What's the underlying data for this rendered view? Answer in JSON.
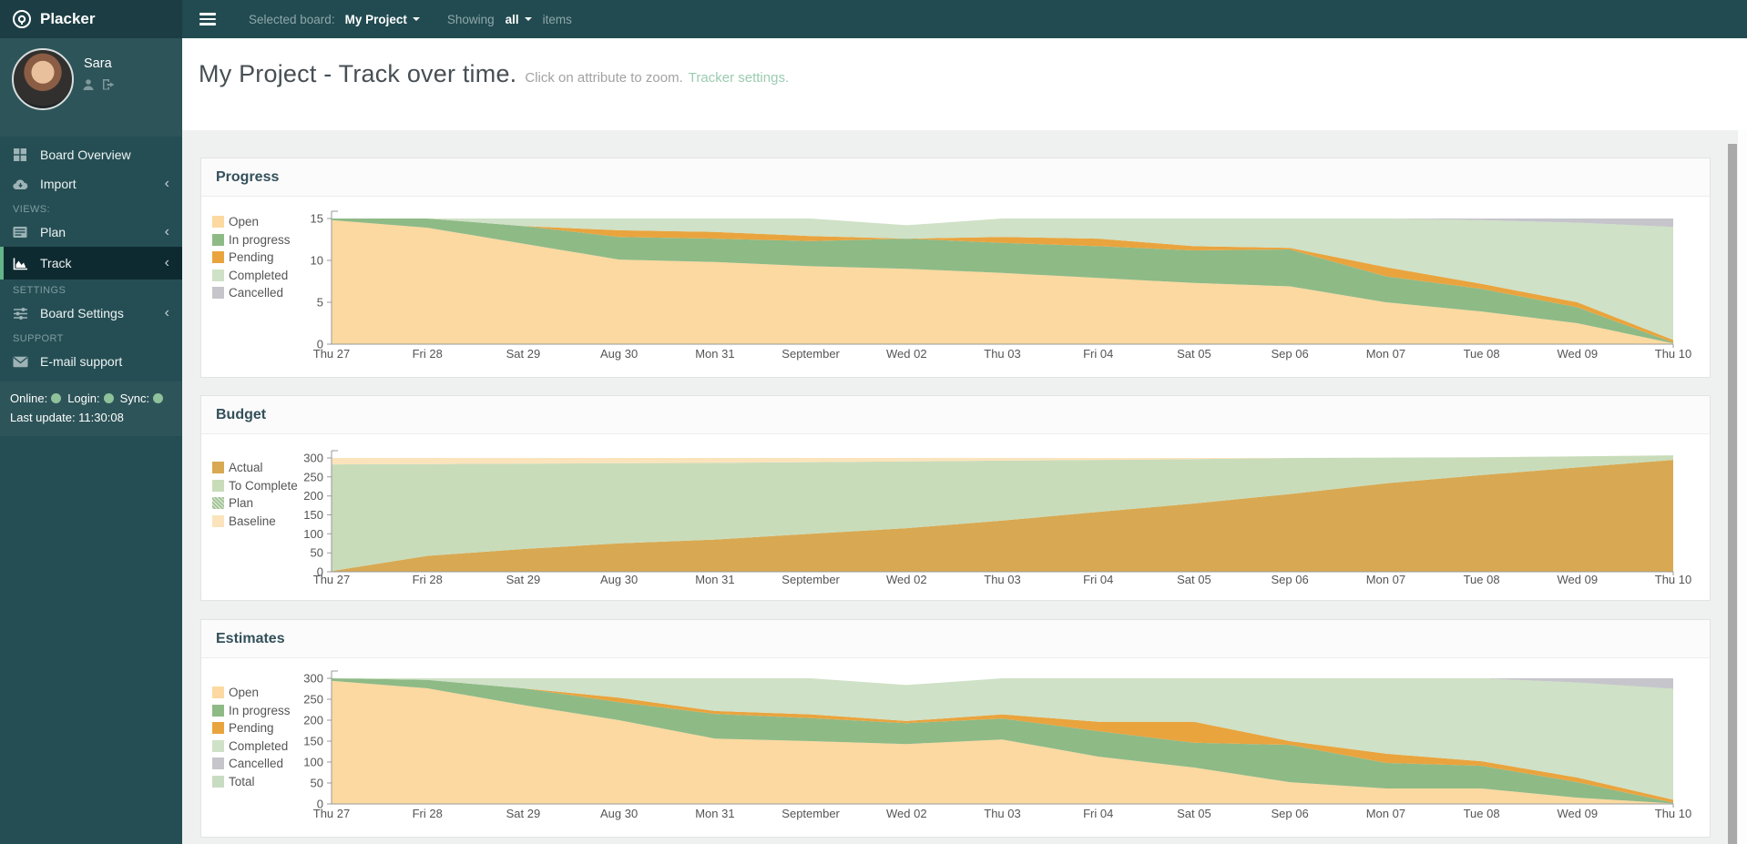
{
  "app": {
    "brand": "Placker"
  },
  "topbar": {
    "selected_board_label": "Selected board:",
    "board_name": "My Project",
    "showing_label": "Showing",
    "showing_value": "all",
    "items_label": "items"
  },
  "sidebar": {
    "user": {
      "name": "Sara"
    },
    "items": {
      "board_overview": "Board Overview",
      "import": "Import",
      "plan": "Plan",
      "track": "Track",
      "board_settings": "Board Settings",
      "email_support": "E-mail support"
    },
    "sections": {
      "views": "VIEWS:",
      "settings": "SETTINGS",
      "support": "SUPPORT"
    },
    "status": {
      "online_label": "Online:",
      "login_label": "Login:",
      "sync_label": "Sync:",
      "last_update": "Last update: 11:30:08"
    }
  },
  "header": {
    "title": "My Project - Track over time.",
    "subtitle": "Click on attribute to zoom.",
    "link_text": "Tracker settings."
  },
  "colors": {
    "topbar": "#214b50",
    "sidebar": "#254e54",
    "active_item_border": "#63b488",
    "link": "#9bcbb1",
    "status_dot": "#8fc19a"
  },
  "chart_data": [
    {
      "type": "area",
      "stacked": true,
      "title": "Progress",
      "xlabel": "",
      "ylabel": "",
      "ylim": [
        0,
        15
      ],
      "yticks": [
        0,
        5,
        10,
        15
      ],
      "grid": false,
      "legend_position": "left",
      "categories": [
        "Thu 27",
        "Fri 28",
        "Sat 29",
        "Aug 30",
        "Mon 31",
        "September",
        "Wed 02",
        "Thu 03",
        "Fri 04",
        "Sat 05",
        "Sep 06",
        "Mon 07",
        "Tue 08",
        "Wed 09",
        "Thu 10"
      ],
      "series": [
        {
          "name": "Open",
          "color": "#fbd9a0",
          "values": [
            14.8,
            13.9,
            12.0,
            10.1,
            9.8,
            9.3,
            9.0,
            8.5,
            7.9,
            7.3,
            6.9,
            5.0,
            3.9,
            2.5,
            0.1
          ]
        },
        {
          "name": "In progress",
          "color": "#8eba86",
          "values": [
            0.2,
            1.1,
            2.1,
            2.7,
            2.8,
            3.0,
            3.6,
            3.6,
            3.8,
            3.9,
            4.4,
            3.1,
            2.7,
            1.9,
            0.1
          ]
        },
        {
          "name": "Pending",
          "color": "#e9a43e",
          "values": [
            0,
            0,
            0,
            0.8,
            0.8,
            0.6,
            0,
            0.7,
            0.9,
            0.5,
            0.2,
            1.1,
            0.6,
            0.6,
            0.3
          ]
        },
        {
          "name": "Completed",
          "color": "#cfe1c6",
          "values": [
            0,
            0,
            0.9,
            1.4,
            1.6,
            2.1,
            1.6,
            2.2,
            2.4,
            3.3,
            3.5,
            5.8,
            7.6,
            9.5,
            13.5
          ]
        },
        {
          "name": "Cancelled",
          "color": "#c5c5cb",
          "values": [
            0,
            0,
            0,
            0,
            0,
            0,
            0,
            0,
            0,
            0,
            0,
            0,
            0.2,
            0.5,
            1.0
          ]
        }
      ]
    },
    {
      "type": "area",
      "stacked": true,
      "title": "Budget",
      "xlabel": "",
      "ylabel": "",
      "ylim": [
        0,
        300
      ],
      "yticks": [
        0,
        50,
        100,
        150,
        200,
        250,
        300
      ],
      "grid": false,
      "legend_position": "left",
      "categories": [
        "Thu 27",
        "Fri 28",
        "Sat 29",
        "Aug 30",
        "Mon 31",
        "September",
        "Wed 02",
        "Thu 03",
        "Fri 04",
        "Sat 05",
        "Sep 06",
        "Mon 07",
        "Tue 08",
        "Wed 09",
        "Thu 10"
      ],
      "series": [
        {
          "name": "Actual",
          "color": "#d8a952",
          "values": [
            2,
            42,
            60,
            75,
            85,
            100,
            115,
            135,
            158,
            180,
            205,
            233,
            255,
            275,
            295
          ]
        },
        {
          "name": "To Complete",
          "color": "#c9dcba",
          "values": [
            281,
            242,
            225,
            211,
            202,
            189,
            176,
            158,
            137,
            117,
            95,
            68,
            47,
            29,
            12
          ]
        },
        {
          "name": "Plan",
          "color": "#9cbf8f",
          "pattern": true,
          "legend_only": true,
          "values": null
        },
        {
          "name": "Baseline",
          "color": "#fbe4bc",
          "values": [
            17,
            16,
            15,
            14,
            13,
            11,
            9,
            7,
            5,
            3,
            0,
            0,
            0,
            0,
            0
          ]
        }
      ]
    },
    {
      "type": "area",
      "stacked": true,
      "title": "Estimates",
      "xlabel": "",
      "ylabel": "",
      "ylim": [
        0,
        300
      ],
      "yticks": [
        0,
        50,
        100,
        150,
        200,
        250,
        300
      ],
      "grid": false,
      "legend_position": "left",
      "categories": [
        "Thu 27",
        "Fri 28",
        "Sat 29",
        "Aug 30",
        "Mon 31",
        "September",
        "Wed 02",
        "Thu 03",
        "Fri 04",
        "Sat 05",
        "Sep 06",
        "Mon 07",
        "Tue 08",
        "Wed 09",
        "Thu 10"
      ],
      "series": [
        {
          "name": "Open",
          "color": "#fbd9a0",
          "values": [
            294,
            276,
            236,
            200,
            156,
            150,
            143,
            154,
            113,
            87,
            52,
            37,
            37,
            15,
            1
          ]
        },
        {
          "name": "In progress",
          "color": "#8eba86",
          "values": [
            6,
            20,
            40,
            43,
            59,
            55,
            50,
            50,
            61,
            59,
            89,
            61,
            54,
            37,
            2
          ]
        },
        {
          "name": "Pending",
          "color": "#e9a43e",
          "values": [
            0,
            0,
            0,
            11,
            7,
            9,
            5,
            10,
            22,
            50,
            9,
            22,
            11,
            11,
            7
          ]
        },
        {
          "name": "Completed",
          "color": "#cfe1c6",
          "values": [
            0,
            4,
            24,
            46,
            78,
            86,
            86,
            86,
            104,
            104,
            150,
            180,
            198,
            227,
            265
          ]
        },
        {
          "name": "Cancelled",
          "color": "#c5c5cb",
          "values": [
            0,
            0,
            0,
            0,
            0,
            0,
            0,
            0,
            0,
            0,
            0,
            0,
            0,
            10,
            25
          ]
        },
        {
          "name": "Total",
          "color": "#c8dcc2",
          "legend_only": true,
          "values": null
        }
      ]
    }
  ]
}
